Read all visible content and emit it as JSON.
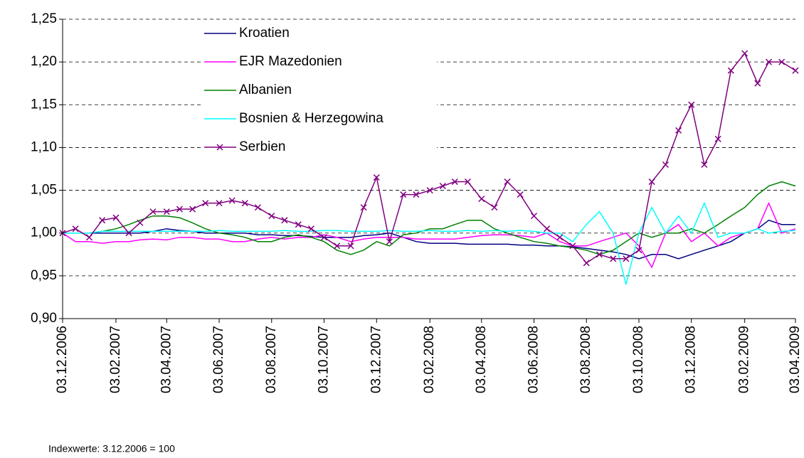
{
  "chart_data": {
    "type": "line",
    "note": "Indexwerte: 3.12.2006 = 100",
    "x": [
      "03.12.2006",
      "18.12.2006",
      "03.01.2007",
      "18.01.2007",
      "03.02.2007",
      "18.02.2007",
      "03.03.2007",
      "18.03.2007",
      "03.04.2007",
      "18.04.2007",
      "03.05.2007",
      "18.05.2007",
      "03.06.2007",
      "18.06.2007",
      "03.07.2007",
      "18.07.2007",
      "03.08.2007",
      "18.08.2007",
      "03.09.2007",
      "18.09.2007",
      "03.10.2007",
      "18.10.2007",
      "03.11.2007",
      "18.11.2007",
      "03.12.2007",
      "18.12.2007",
      "03.01.2008",
      "18.01.2008",
      "03.02.2008",
      "18.02.2008",
      "03.03.2008",
      "18.03.2008",
      "03.04.2008",
      "18.04.2008",
      "03.05.2008",
      "18.05.2008",
      "03.06.2008",
      "18.06.2008",
      "03.07.2008",
      "18.07.2008",
      "03.08.2008",
      "18.08.2008",
      "03.09.2008",
      "18.09.2008",
      "03.10.2008",
      "18.10.2008",
      "03.11.2008",
      "18.11.2008",
      "03.12.2008",
      "18.12.2008",
      "03.01.2009",
      "18.01.2009",
      "03.02.2009",
      "18.02.2009",
      "03.03.2009",
      "18.03.2009",
      "03.04.2009"
    ],
    "series": [
      {
        "name": "Kroatien",
        "color": "#000080",
        "values": [
          1.0,
          1.0,
          1.0,
          1.0,
          1.0,
          1.0,
          1.0,
          1.002,
          1.005,
          1.003,
          1.002,
          1.0,
          1.0,
          1.0,
          1.0,
          0.998,
          0.998,
          0.997,
          0.997,
          0.996,
          0.995,
          0.995,
          0.995,
          0.997,
          0.998,
          1.0,
          0.995,
          0.99,
          0.988,
          0.988,
          0.988,
          0.987,
          0.987,
          0.987,
          0.987,
          0.986,
          0.986,
          0.985,
          0.985,
          0.984,
          0.982,
          0.98,
          0.978,
          0.975,
          0.97,
          0.975,
          0.975,
          0.97,
          0.975,
          0.98,
          0.985,
          0.99,
          1.0,
          1.005,
          1.015,
          1.01,
          1.01
        ]
      },
      {
        "name": "EJR Mazedonien",
        "color": "#ff00ff",
        "values": [
          1.0,
          0.99,
          0.99,
          0.988,
          0.99,
          0.99,
          0.992,
          0.993,
          0.992,
          0.995,
          0.995,
          0.993,
          0.993,
          0.99,
          0.99,
          0.993,
          0.995,
          0.993,
          0.995,
          0.995,
          0.998,
          0.995,
          0.99,
          0.993,
          0.995,
          0.995,
          0.995,
          0.993,
          0.993,
          0.993,
          0.993,
          0.995,
          0.997,
          0.998,
          0.998,
          0.997,
          0.995,
          1.0,
          0.99,
          0.985,
          0.985,
          0.99,
          0.995,
          1.0,
          0.985,
          0.96,
          1.0,
          1.01,
          0.99,
          1.0,
          0.985,
          0.995,
          1.0,
          1.005,
          1.035,
          1.0,
          1.005
        ]
      },
      {
        "name": "Albanien",
        "color": "#008000",
        "values": [
          1.0,
          1.0,
          1.0,
          1.002,
          1.005,
          1.01,
          1.015,
          1.02,
          1.02,
          1.018,
          1.012,
          1.005,
          1.0,
          0.998,
          0.995,
          0.99,
          0.99,
          0.995,
          0.998,
          0.995,
          0.99,
          0.98,
          0.975,
          0.98,
          0.99,
          0.985,
          0.998,
          1.0,
          1.005,
          1.005,
          1.01,
          1.015,
          1.015,
          1.005,
          1.0,
          0.995,
          0.99,
          0.988,
          0.985,
          0.983,
          0.98,
          0.975,
          0.98,
          0.99,
          1.0,
          0.995,
          1.0,
          1.0,
          1.005,
          1.0,
          1.01,
          1.02,
          1.03,
          1.045,
          1.055,
          1.06,
          1.055
        ]
      },
      {
        "name": "Bosnien & Herzegowina",
        "color": "#00ffff",
        "values": [
          1.0,
          1.0,
          1.0,
          1.002,
          1.002,
          1.002,
          1.002,
          1.002,
          1.002,
          1.002,
          1.002,
          1.002,
          1.003,
          1.002,
          1.002,
          1.002,
          1.002,
          1.003,
          1.002,
          1.002,
          1.003,
          1.003,
          1.002,
          1.002,
          1.002,
          1.003,
          1.002,
          1.002,
          1.003,
          1.002,
          1.002,
          1.003,
          1.002,
          1.003,
          1.002,
          1.003,
          1.002,
          1.0,
          1.0,
          0.99,
          1.01,
          1.025,
          1.0,
          0.94,
          1.0,
          1.03,
          1.0,
          1.02,
          1.0,
          1.035,
          0.995,
          1.0,
          1.0,
          1.005,
          1.0,
          1.002,
          1.003
        ]
      },
      {
        "name": "Serbien",
        "color": "#800080",
        "marker": "x",
        "values": [
          1.0,
          1.005,
          0.995,
          1.015,
          1.018,
          1.0,
          1.012,
          1.025,
          1.025,
          1.028,
          1.028,
          1.035,
          1.035,
          1.038,
          1.035,
          1.03,
          1.02,
          1.015,
          1.01,
          1.005,
          0.995,
          0.985,
          0.985,
          1.03,
          1.065,
          0.99,
          1.045,
          1.045,
          1.05,
          1.055,
          1.06,
          1.06,
          1.04,
          1.03,
          1.06,
          1.045,
          1.02,
          1.005,
          0.995,
          0.985,
          0.965,
          0.975,
          0.97,
          0.97,
          0.98,
          1.06,
          1.08,
          1.12,
          1.15,
          1.08,
          1.11,
          1.19,
          1.21,
          1.175,
          1.2,
          1.2,
          1.19
        ]
      }
    ],
    "xlim": [
      "03.12.2006",
      "03.04.2009"
    ],
    "xticks": [
      "03.12.2006",
      "03.02.2007",
      "03.04.2007",
      "03.06.2007",
      "03.08.2007",
      "03.10.2007",
      "03.12.2007",
      "03.02.2008",
      "03.04.2008",
      "03.06.2008",
      "03.08.2008",
      "03.10.2008",
      "03.12.2008",
      "03.02.2009",
      "03.04.2009"
    ],
    "ylim": [
      0.9,
      1.25
    ],
    "yticks": [
      {
        "value": 0.9,
        "label": "0,90"
      },
      {
        "value": 0.95,
        "label": "0,95"
      },
      {
        "value": 1.0,
        "label": "1,00"
      },
      {
        "value": 1.05,
        "label": "1,05"
      },
      {
        "value": 1.1,
        "label": "1,10"
      },
      {
        "value": 1.15,
        "label": "1,15"
      },
      {
        "value": 1.2,
        "label": "1,20"
      },
      {
        "value": 1.25,
        "label": "1,25"
      }
    ],
    "grid": true,
    "legend": "upper-left"
  }
}
